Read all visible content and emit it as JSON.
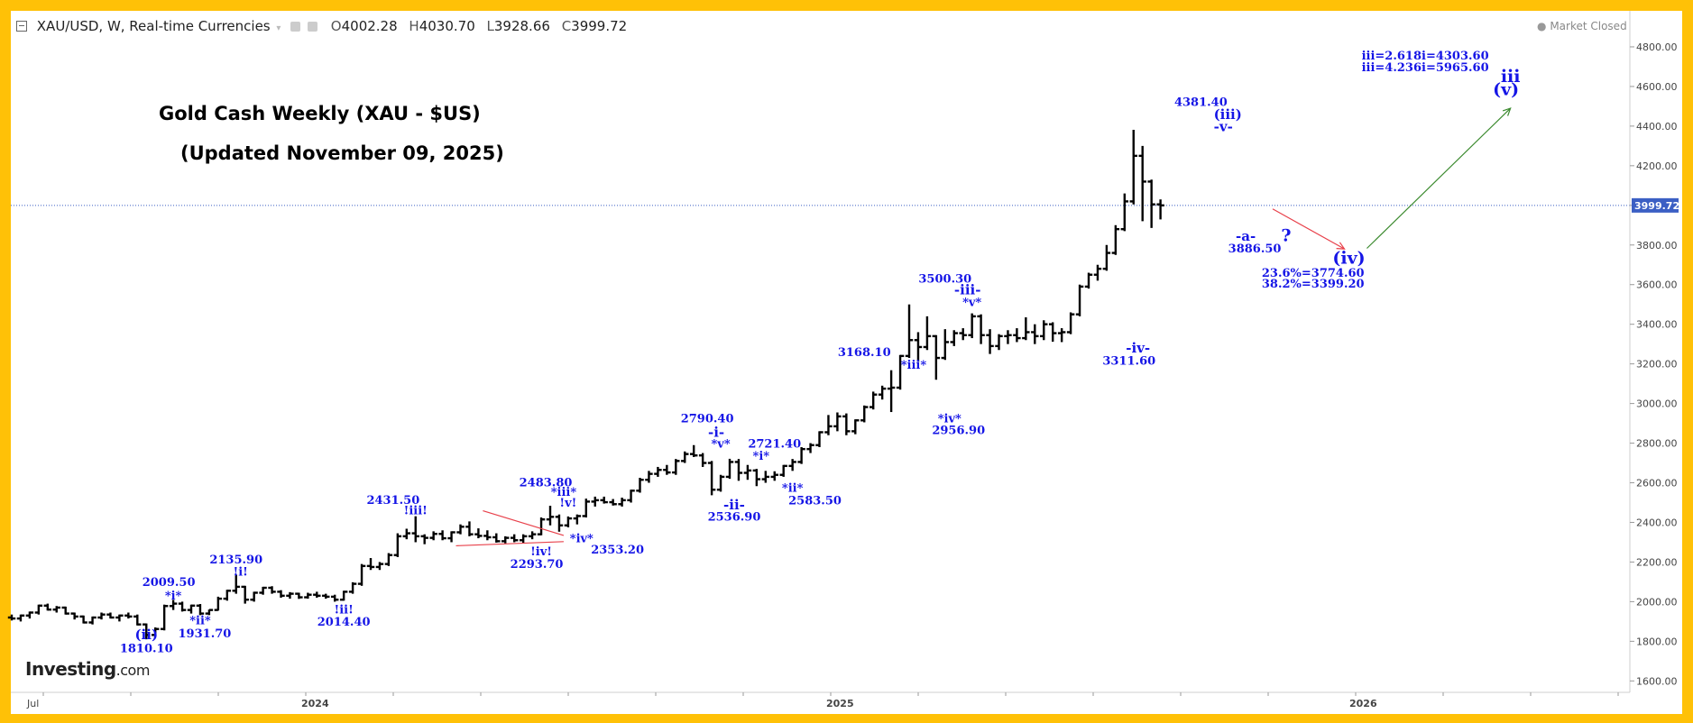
{
  "header": {
    "symbol": "XAU/USD, W, Real-time Currencies",
    "ohlc": [
      {
        "label": "O",
        "value": "4002.28"
      },
      {
        "label": "H",
        "value": "4030.70"
      },
      {
        "label": "L",
        "value": "3928.66"
      },
      {
        "label": "C",
        "value": "3999.72"
      }
    ],
    "market_status": "Market Closed",
    "icon_names": [
      "collapse-icon",
      "dropdown-icon",
      "eye-icon",
      "settings-icon"
    ]
  },
  "logo": {
    "brand": "Investing",
    "suffix": ".com"
  },
  "annotations_title": {
    "line1": "Gold Cash Weekly (XAU - $US)",
    "line2": "(Updated November 09, 2025)"
  },
  "colors": {
    "frame": "#ffc107",
    "bars": "#000000",
    "label_blue": "#1515e6",
    "price_line": "#3b5fc4",
    "price_tag": "#3b5fc4",
    "arrow_red": "#e8414b",
    "arrow_green": "#3b8a2e",
    "trend_red": "#e8414b"
  },
  "chart_data": {
    "type": "ohlc",
    "interval": "W",
    "x_axis_labels": [
      "Jul",
      "2024",
      "2025",
      "2026"
    ],
    "y_ticks": [
      1600,
      1800,
      2000,
      2200,
      2400,
      2600,
      2800,
      3000,
      3200,
      3400,
      3600,
      3800,
      4000,
      4200,
      4400,
      4600,
      4800
    ],
    "y_tick_labels": [
      "1600.00",
      "1800.00",
      "2000.00",
      "2200.00",
      "2400.00",
      "2600.00",
      "2800.00",
      "3000.00",
      "3200.00",
      "3400.00",
      "3600.00",
      "3800.00",
      "4000.00",
      "4200.00",
      "4400.00",
      "4600.00",
      "4800.00"
    ],
    "ylim": [
      1510,
      4880
    ],
    "current_price": 3999.72,
    "current_price_label": "3999.72",
    "bars": [
      [
        1920,
        1935,
        1905,
        1915
      ],
      [
        1915,
        1935,
        1900,
        1930
      ],
      [
        1930,
        1950,
        1915,
        1945
      ],
      [
        1945,
        1985,
        1935,
        1980
      ],
      [
        1980,
        1990,
        1955,
        1960
      ],
      [
        1960,
        1978,
        1945,
        1970
      ],
      [
        1970,
        1975,
        1935,
        1940
      ],
      [
        1940,
        1945,
        1910,
        1925
      ],
      [
        1925,
        1930,
        1890,
        1895
      ],
      [
        1895,
        1925,
        1885,
        1920
      ],
      [
        1920,
        1945,
        1910,
        1935
      ],
      [
        1935,
        1945,
        1915,
        1920
      ],
      [
        1920,
        1935,
        1900,
        1930
      ],
      [
        1930,
        1945,
        1915,
        1925
      ],
      [
        1925,
        1935,
        1880,
        1885
      ],
      [
        1885,
        1890,
        1810,
        1832
      ],
      [
        1832,
        1870,
        1825,
        1862
      ],
      [
        1862,
        1985,
        1855,
        1978
      ],
      [
        1978,
        2009,
        1958,
        1990
      ],
      [
        1990,
        2000,
        1950,
        1958
      ],
      [
        1958,
        1985,
        1940,
        1980
      ],
      [
        1980,
        1988,
        1932,
        1940
      ],
      [
        1940,
        1960,
        1932,
        1958
      ],
      [
        1958,
        2025,
        1955,
        2015
      ],
      [
        2015,
        2060,
        2005,
        2055
      ],
      [
        2055,
        2136,
        2040,
        2075
      ],
      [
        2075,
        2080,
        1990,
        2010
      ],
      [
        2010,
        2050,
        2000,
        2045
      ],
      [
        2045,
        2075,
        2035,
        2070
      ],
      [
        2070,
        2078,
        2040,
        2050
      ],
      [
        2050,
        2058,
        2020,
        2030
      ],
      [
        2030,
        2048,
        2015,
        2040
      ],
      [
        2040,
        2045,
        2014,
        2022
      ],
      [
        2022,
        2045,
        2015,
        2035
      ],
      [
        2035,
        2050,
        2020,
        2030
      ],
      [
        2030,
        2040,
        2015,
        2025
      ],
      [
        2025,
        2035,
        2000,
        2010
      ],
      [
        2010,
        2055,
        2005,
        2050
      ],
      [
        2050,
        2098,
        2040,
        2090
      ],
      [
        2090,
        2190,
        2080,
        2180
      ],
      [
        2180,
        2220,
        2160,
        2175
      ],
      [
        2175,
        2200,
        2160,
        2190
      ],
      [
        2190,
        2245,
        2180,
        2235
      ],
      [
        2235,
        2345,
        2225,
        2330
      ],
      [
        2330,
        2368,
        2315,
        2345
      ],
      [
        2345,
        2431,
        2300,
        2330
      ],
      [
        2330,
        2340,
        2290,
        2322
      ],
      [
        2322,
        2355,
        2310,
        2342
      ],
      [
        2342,
        2360,
        2310,
        2320
      ],
      [
        2320,
        2355,
        2300,
        2350
      ],
      [
        2350,
        2390,
        2340,
        2378
      ],
      [
        2378,
        2405,
        2330,
        2340
      ],
      [
        2340,
        2370,
        2320,
        2332
      ],
      [
        2332,
        2360,
        2310,
        2325
      ],
      [
        2325,
        2345,
        2298,
        2305
      ],
      [
        2305,
        2330,
        2294,
        2322
      ],
      [
        2322,
        2340,
        2300,
        2310
      ],
      [
        2310,
        2340,
        2295,
        2330
      ],
      [
        2330,
        2355,
        2315,
        2340
      ],
      [
        2340,
        2425,
        2335,
        2415
      ],
      [
        2415,
        2484,
        2385,
        2428
      ],
      [
        2428,
        2440,
        2353,
        2385
      ],
      [
        2385,
        2430,
        2375,
        2420
      ],
      [
        2420,
        2440,
        2390,
        2432
      ],
      [
        2432,
        2520,
        2425,
        2505
      ],
      [
        2505,
        2530,
        2480,
        2512
      ],
      [
        2512,
        2530,
        2495,
        2502
      ],
      [
        2502,
        2518,
        2485,
        2492
      ],
      [
        2492,
        2525,
        2480,
        2512
      ],
      [
        2512,
        2565,
        2500,
        2560
      ],
      [
        2560,
        2625,
        2550,
        2615
      ],
      [
        2615,
        2660,
        2600,
        2645
      ],
      [
        2645,
        2680,
        2630,
        2665
      ],
      [
        2665,
        2690,
        2640,
        2652
      ],
      [
        2652,
        2720,
        2640,
        2710
      ],
      [
        2710,
        2758,
        2700,
        2745
      ],
      [
        2745,
        2790,
        2730,
        2738
      ],
      [
        2738,
        2750,
        2680,
        2700
      ],
      [
        2700,
        2710,
        2537,
        2565
      ],
      [
        2565,
        2640,
        2555,
        2630
      ],
      [
        2630,
        2721,
        2620,
        2705
      ],
      [
        2705,
        2720,
        2610,
        2650
      ],
      [
        2650,
        2690,
        2615,
        2662
      ],
      [
        2662,
        2670,
        2583,
        2618
      ],
      [
        2618,
        2660,
        2600,
        2630
      ],
      [
        2630,
        2658,
        2610,
        2640
      ],
      [
        2640,
        2690,
        2630,
        2685
      ],
      [
        2685,
        2720,
        2660,
        2705
      ],
      [
        2705,
        2780,
        2695,
        2770
      ],
      [
        2770,
        2800,
        2750,
        2790
      ],
      [
        2790,
        2860,
        2780,
        2855
      ],
      [
        2855,
        2942,
        2840,
        2885
      ],
      [
        2885,
        2955,
        2860,
        2935
      ],
      [
        2935,
        2950,
        2840,
        2860
      ],
      [
        2860,
        2920,
        2845,
        2915
      ],
      [
        2915,
        2990,
        2905,
        2982
      ],
      [
        2982,
        3060,
        2970,
        3045
      ],
      [
        3045,
        3090,
        3020,
        3075
      ],
      [
        3075,
        3168,
        2957,
        3080
      ],
      [
        3080,
        3245,
        3070,
        3240
      ],
      [
        3240,
        3500,
        3230,
        3320
      ],
      [
        3320,
        3360,
        3210,
        3285
      ],
      [
        3285,
        3440,
        3270,
        3340
      ],
      [
        3340,
        3345,
        3120,
        3230
      ],
      [
        3230,
        3375,
        3220,
        3310
      ],
      [
        3310,
        3370,
        3290,
        3355
      ],
      [
        3355,
        3380,
        3320,
        3345
      ],
      [
        3345,
        3455,
        3330,
        3440
      ],
      [
        3440,
        3450,
        3300,
        3345
      ],
      [
        3345,
        3375,
        3250,
        3290
      ],
      [
        3290,
        3350,
        3270,
        3340
      ],
      [
        3340,
        3370,
        3300,
        3345
      ],
      [
        3345,
        3380,
        3310,
        3330
      ],
      [
        3330,
        3435,
        3320,
        3360
      ],
      [
        3360,
        3400,
        3300,
        3340
      ],
      [
        3340,
        3420,
        3320,
        3400
      ],
      [
        3400,
        3410,
        3312,
        3355
      ],
      [
        3355,
        3380,
        3310,
        3360
      ],
      [
        3360,
        3460,
        3350,
        3450
      ],
      [
        3450,
        3600,
        3440,
        3590
      ],
      [
        3590,
        3660,
        3580,
        3650
      ],
      [
        3650,
        3700,
        3620,
        3680
      ],
      [
        3680,
        3800,
        3670,
        3760
      ],
      [
        3760,
        3900,
        3750,
        3880
      ],
      [
        3880,
        4060,
        3870,
        4020
      ],
      [
        4020,
        4381,
        4005,
        4250
      ],
      [
        4250,
        4300,
        3920,
        4120
      ],
      [
        4120,
        4130,
        3886,
        4005
      ],
      [
        4005,
        4030,
        3929,
        4000
      ]
    ],
    "labels": [
      {
        "text": "1810.10",
        "x": 15,
        "y": 1745
      },
      {
        "text": "(ii)",
        "x": 15,
        "y": 1810
      },
      {
        "text": "2009.50",
        "x": 17.5,
        "y": 2080
      },
      {
        "text": "*i*",
        "x": 18,
        "y": 2010
      },
      {
        "text": "*ii*",
        "x": 21,
        "y": 1885
      },
      {
        "text": "1931.70",
        "x": 21.5,
        "y": 1820
      },
      {
        "text": "2135.90",
        "x": 25,
        "y": 2192
      },
      {
        "text": "!i!",
        "x": 25.5,
        "y": 2132
      },
      {
        "text": "!ii!",
        "x": 37,
        "y": 1940
      },
      {
        "text": "2014.40",
        "x": 37,
        "y": 1878
      },
      {
        "text": "2431.50",
        "x": 42.5,
        "y": 2494
      },
      {
        "text": "!iii!",
        "x": 45,
        "y": 2440
      },
      {
        "text": "2483.80",
        "x": 59.5,
        "y": 2583
      },
      {
        "text": "*iii*",
        "x": 61.5,
        "y": 2533
      },
      {
        "text": "!v!",
        "x": 62,
        "y": 2480
      },
      {
        "text": "*iv*",
        "x": 63.5,
        "y": 2300
      },
      {
        "text": "2353.20",
        "x": 67.5,
        "y": 2244
      },
      {
        "text": "!iv!",
        "x": 59,
        "y": 2233
      },
      {
        "text": "2293.70",
        "x": 58.5,
        "y": 2170
      },
      {
        "text": "2790.40",
        "x": 77.5,
        "y": 2906
      },
      {
        "text": "-i-",
        "x": 78.5,
        "y": 2832
      },
      {
        "text": "*v*",
        "x": 79,
        "y": 2778
      },
      {
        "text": "-ii-",
        "x": 80.5,
        "y": 2467
      },
      {
        "text": "2536.90",
        "x": 80.5,
        "y": 2408
      },
      {
        "text": "2721.40",
        "x": 85,
        "y": 2777
      },
      {
        "text": "*i*",
        "x": 83.5,
        "y": 2717
      },
      {
        "text": "*ii*",
        "x": 87,
        "y": 2555
      },
      {
        "text": "2583.50",
        "x": 89.5,
        "y": 2490
      },
      {
        "text": "3168.10",
        "x": 95,
        "y": 3240
      },
      {
        "text": "*iii*",
        "x": 100.5,
        "y": 3175
      },
      {
        "text": "*iv*",
        "x": 104.5,
        "y": 2905
      },
      {
        "text": "2956.90",
        "x": 105.5,
        "y": 2845
      },
      {
        "text": "3500.30",
        "x": 104,
        "y": 3610
      },
      {
        "text": "-iii-",
        "x": 106.5,
        "y": 3550
      },
      {
        "text": "*v*",
        "x": 107,
        "y": 3492
      },
      {
        "text": "-iv-",
        "x": 125.5,
        "y": 3257
      },
      {
        "text": "3311.60",
        "x": 124.5,
        "y": 3196
      },
      {
        "text": "4381.40",
        "x": 132.5,
        "y": 4501
      },
      {
        "text": "(iii)",
        "x": 135.5,
        "y": 4435
      },
      {
        "text": "-v-",
        "x": 135,
        "y": 4375
      },
      {
        "text": "-a-",
        "x": 137.5,
        "y": 3822
      },
      {
        "text": "3886.50",
        "x": 138.5,
        "y": 3762
      },
      {
        "text": "?",
        "x": 142,
        "y": 3819
      },
      {
        "text": "(iv)",
        "x": 149,
        "y": 3706
      },
      {
        "text": "23.6%=3774.60",
        "x": 145,
        "y": 3640
      },
      {
        "text": "38.2%=3399.20",
        "x": 145,
        "y": 3584
      },
      {
        "text": "iii=2.618i=4303.60",
        "x": 157.5,
        "y": 4737
      },
      {
        "text": "iii=4.236i=5965.60",
        "x": 157.5,
        "y": 4677
      },
      {
        "text": "iii",
        "x": 167,
        "y": 4623
      },
      {
        "text": "(v)",
        "x": 166.5,
        "y": 4557
      }
    ],
    "arrows": [
      {
        "color": "red",
        "from": [
          140.5,
          3982
        ],
        "to": [
          148.5,
          3780
        ]
      },
      {
        "color": "green",
        "from": [
          151,
          3783
        ],
        "to": [
          167,
          4490
        ]
      }
    ],
    "triangle": {
      "upper": [
        [
          52.5,
          2459
        ],
        [
          61.5,
          2334
        ]
      ],
      "lower": [
        [
          49.5,
          2282
        ],
        [
          61.5,
          2303
        ]
      ]
    }
  }
}
